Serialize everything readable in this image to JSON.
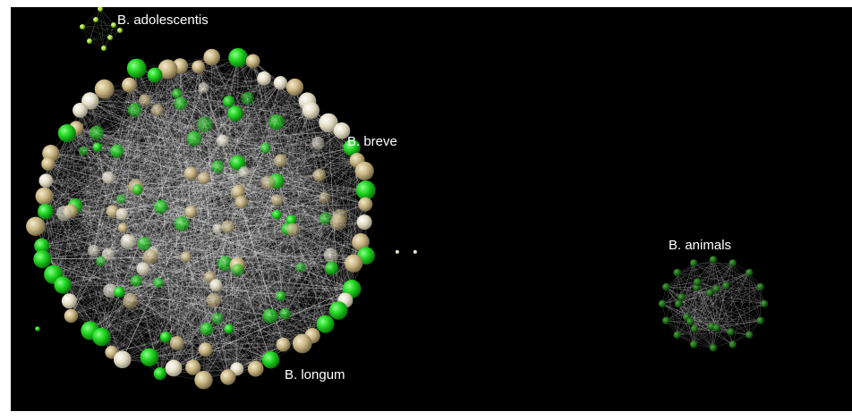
{
  "clusters": [
    {
      "id": "breve",
      "label": "B. breve",
      "node_count": 150,
      "sphere_colors": [
        "#21d621",
        "#c8b480",
        "#e3dcc4"
      ],
      "edge_color": "#ffffff"
    },
    {
      "id": "longum",
      "label": "B. longum"
    },
    {
      "id": "adolescentis",
      "label": "B. adolescentis",
      "node_count": 8,
      "sphere_colors": [
        "#9ed93c"
      ]
    },
    {
      "id": "animals",
      "label": "B. animals",
      "node_count": 30,
      "sphere_colors": [
        "#1f6b1a"
      ],
      "edge_color": "#cfcfcf"
    }
  ],
  "background": "#000000"
}
